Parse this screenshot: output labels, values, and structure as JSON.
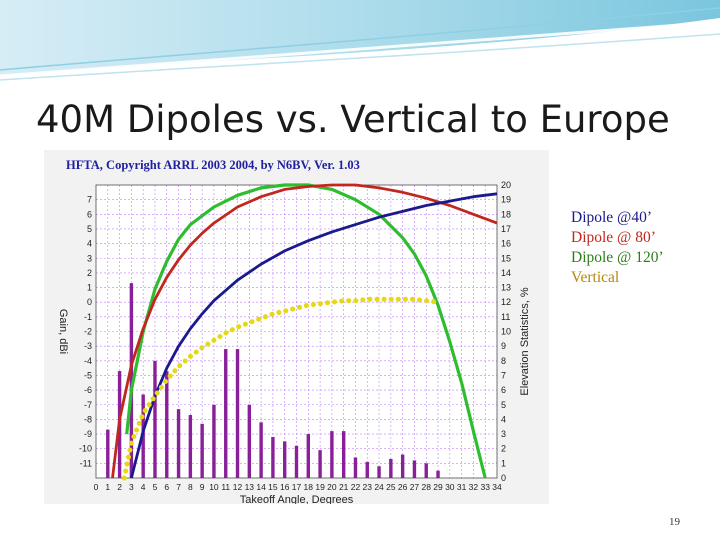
{
  "slide": {
    "title": "40M Dipoles vs. Vertical to Europe",
    "page_number": "19"
  },
  "legend": [
    {
      "label": "Dipole @40’",
      "color": "#1a1a8c"
    },
    {
      "label": "Dipole @ 80’",
      "color": "#c0281e"
    },
    {
      "label": "Dipole @ 120’",
      "color": "#2e7d1a"
    },
    {
      "label": "Vertical",
      "color": "#b8860b"
    }
  ],
  "colors": {
    "dipole40": "#1a1a8c",
    "dipole80": "#c0281e",
    "dipole120": "#2ebd2e",
    "vertical": "#e6d817",
    "stats_bar": "#8a1f9a",
    "grid": "#c080ff"
  },
  "chart_data": {
    "type": "line",
    "title": "HFTA, Copyright ARRL 2003 2004, by N6BV, Ver. 1.03",
    "xlabel": "Takeoff Angle, Degrees",
    "ylabel": "Gain, dBi",
    "y2label": "Elevation Statistics, %",
    "xlim": [
      0,
      34
    ],
    "ylim": [
      -12,
      8
    ],
    "y2lim": [
      0,
      20
    ],
    "grid": true,
    "x_ticks": [
      "0",
      "1",
      "2",
      "3",
      "4",
      "5",
      "6",
      "7",
      "8",
      "9",
      "10",
      "11",
      "12",
      "13",
      "14",
      "15",
      "16",
      "17",
      "18",
      "19",
      "20",
      "21",
      "22",
      "23",
      "24",
      "25",
      "26",
      "27",
      "28",
      "29",
      "30",
      "31",
      "32",
      "33",
      "34"
    ],
    "y_ticks": [
      "7",
      "6",
      "5",
      "4",
      "3",
      "2",
      "1",
      "0",
      "-1",
      "-2",
      "-3",
      "-4",
      "-5",
      "-6",
      "-7",
      "-8",
      "-9",
      "-10",
      "-11"
    ],
    "y2_ticks": [
      "20",
      "19",
      "18",
      "17",
      "16",
      "15",
      "14",
      "13",
      "12",
      "11",
      "10",
      "9",
      "8",
      "7",
      "6",
      "5",
      "4",
      "3",
      "2",
      "1",
      "0"
    ],
    "series": [
      {
        "key": "dipole120",
        "style": "solid",
        "points": [
          [
            2.6,
            -9.0
          ],
          [
            3,
            -6.0
          ],
          [
            4,
            -2.0
          ],
          [
            5,
            0.9
          ],
          [
            6,
            2.8
          ],
          [
            7,
            4.3
          ],
          [
            8,
            5.3
          ],
          [
            10,
            6.5
          ],
          [
            12,
            7.3
          ],
          [
            14,
            7.8
          ],
          [
            16,
            8.0
          ],
          [
            18,
            8.0
          ],
          [
            20,
            7.7
          ],
          [
            22,
            7.0
          ],
          [
            24,
            6.0
          ],
          [
            26,
            4.4
          ],
          [
            27,
            3.3
          ],
          [
            28,
            1.8
          ],
          [
            29,
            -0.2
          ],
          [
            30,
            -2.7
          ],
          [
            31,
            -5.5
          ],
          [
            32,
            -8.8
          ],
          [
            33,
            -12.0
          ]
        ]
      },
      {
        "key": "dipole80",
        "style": "solid",
        "points": [
          [
            1.4,
            -12.0
          ],
          [
            2,
            -8.0
          ],
          [
            3,
            -4.3
          ],
          [
            4,
            -1.8
          ],
          [
            5,
            0.2
          ],
          [
            6,
            1.7
          ],
          [
            7,
            2.9
          ],
          [
            8,
            3.9
          ],
          [
            9,
            4.7
          ],
          [
            10,
            5.4
          ],
          [
            12,
            6.5
          ],
          [
            14,
            7.2
          ],
          [
            16,
            7.7
          ],
          [
            18,
            7.9
          ],
          [
            20,
            8.0
          ],
          [
            22,
            8.0
          ],
          [
            24,
            7.8
          ],
          [
            26,
            7.5
          ],
          [
            28,
            7.1
          ],
          [
            30,
            6.6
          ],
          [
            32,
            6.0
          ],
          [
            34,
            5.4
          ]
        ]
      },
      {
        "key": "dipole40",
        "style": "solid",
        "points": [
          [
            3.0,
            -12.0
          ],
          [
            4,
            -8.8
          ],
          [
            5,
            -6.4
          ],
          [
            6,
            -4.5
          ],
          [
            7,
            -3.0
          ],
          [
            8,
            -1.8
          ],
          [
            9,
            -0.8
          ],
          [
            10,
            0.1
          ],
          [
            12,
            1.5
          ],
          [
            14,
            2.6
          ],
          [
            16,
            3.5
          ],
          [
            18,
            4.2
          ],
          [
            20,
            4.8
          ],
          [
            22,
            5.3
          ],
          [
            24,
            5.8
          ],
          [
            26,
            6.2
          ],
          [
            28,
            6.6
          ],
          [
            30,
            6.9
          ],
          [
            32,
            7.2
          ],
          [
            34,
            7.4
          ]
        ]
      },
      {
        "key": "vertical",
        "style": "dotted",
        "points": [
          [
            2.4,
            -12.0
          ],
          [
            3,
            -9.6
          ],
          [
            4,
            -7.6
          ],
          [
            5,
            -6.4
          ],
          [
            6,
            -5.3
          ],
          [
            7,
            -4.4
          ],
          [
            8,
            -3.7
          ],
          [
            9,
            -3.1
          ],
          [
            10,
            -2.6
          ],
          [
            11,
            -2.1
          ],
          [
            12,
            -1.7
          ],
          [
            13,
            -1.4
          ],
          [
            14,
            -1.1
          ],
          [
            15,
            -0.8
          ],
          [
            16,
            -0.6
          ],
          [
            17,
            -0.4
          ],
          [
            18,
            -0.2
          ],
          [
            19,
            -0.1
          ],
          [
            20,
            0.0
          ],
          [
            21,
            0.1
          ],
          [
            22,
            0.1
          ],
          [
            23,
            0.2
          ],
          [
            24,
            0.2
          ],
          [
            25,
            0.2
          ],
          [
            26,
            0.2
          ],
          [
            27,
            0.2
          ],
          [
            28,
            0.1
          ],
          [
            29,
            0.0
          ]
        ]
      }
    ],
    "stats_bars": {
      "x": [
        1,
        2,
        3,
        4,
        5,
        6,
        7,
        8,
        9,
        10,
        11,
        12,
        13,
        14,
        15,
        16,
        17,
        18,
        19,
        20,
        21,
        22,
        23,
        24,
        25,
        26,
        27,
        28,
        29
      ],
      "values": [
        3.3,
        7.3,
        13.3,
        5.7,
        8.0,
        7.3,
        4.7,
        4.3,
        3.7,
        5.0,
        8.8,
        8.8,
        5.0,
        3.8,
        2.8,
        2.5,
        2.2,
        3.0,
        1.9,
        3.2,
        3.2,
        1.4,
        1.1,
        0.8,
        1.3,
        1.6,
        1.2,
        1.0,
        0.5
      ]
    }
  }
}
